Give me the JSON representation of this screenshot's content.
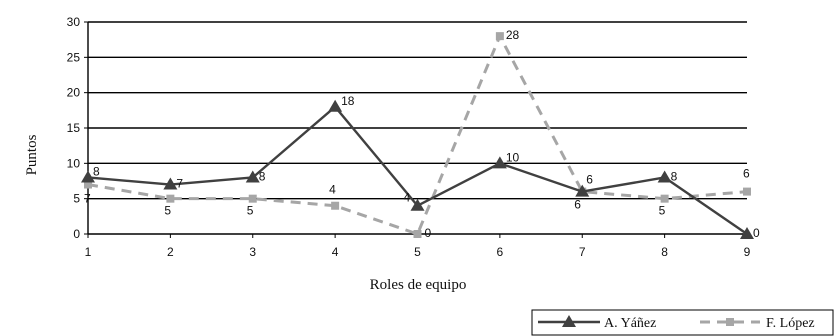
{
  "chart_data": {
    "type": "line",
    "xlabel": "Roles de equipo",
    "ylabel": "Puntos",
    "x": [
      1,
      2,
      3,
      4,
      5,
      6,
      7,
      8,
      9
    ],
    "ylim": [
      0,
      30
    ],
    "yticks": [
      0,
      5,
      10,
      15,
      20,
      25,
      30
    ],
    "grid": "horizontal",
    "legend_placement": "bottom-right",
    "series": [
      {
        "name": "A. Yáñez",
        "values": [
          8,
          7,
          8,
          18,
          4,
          10,
          6,
          8,
          0
        ],
        "data_labels": [
          "8",
          "7",
          "8",
          "18",
          "4",
          "10",
          "6",
          "8",
          "0"
        ],
        "color": "#404040",
        "style": "solid",
        "marker": "triangle"
      },
      {
        "name": "F. López",
        "values": [
          7,
          5,
          5,
          4,
          0,
          28,
          6,
          5,
          6
        ],
        "data_labels": [
          "7",
          "5",
          "5",
          "4",
          "0",
          "28",
          "6",
          "5",
          "6"
        ],
        "color": "#a6a6a6",
        "style": "dashed",
        "marker": "square"
      }
    ]
  }
}
